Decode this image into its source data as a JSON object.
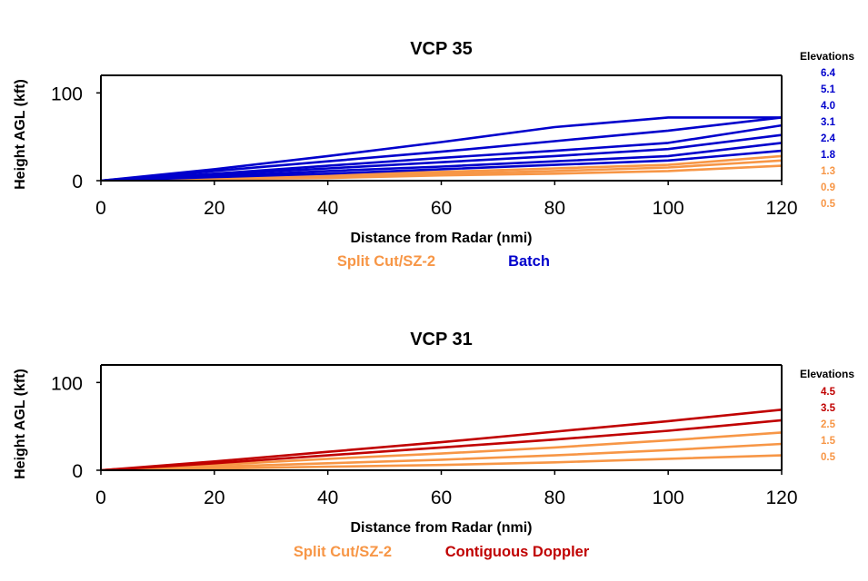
{
  "chart_data": [
    {
      "type": "line",
      "title": "VCP 35",
      "xlabel": "Distance from Radar (nmi)",
      "ylabel": "Height AGL (kft)",
      "xlim": [
        0,
        120
      ],
      "ylim": [
        0,
        120
      ],
      "xticks": [
        "0",
        "20",
        "40",
        "60",
        "80",
        "100",
        "120"
      ],
      "yticks": [
        "0",
        "100"
      ],
      "legend_title": "Elevations",
      "legend": [
        {
          "label": "6.4",
          "color": "#0000cc"
        },
        {
          "label": "5.1",
          "color": "#0000cc"
        },
        {
          "label": "4.0",
          "color": "#0000cc"
        },
        {
          "label": "3.1",
          "color": "#0000cc"
        },
        {
          "label": "2.4",
          "color": "#0000cc"
        },
        {
          "label": "1.8",
          "color": "#0000cc"
        },
        {
          "label": "1.3",
          "color": "#f79646"
        },
        {
          "label": "0.9",
          "color": "#f79646"
        },
        {
          "label": "0.5",
          "color": "#f79646"
        }
      ],
      "mode_legend": [
        {
          "label": "Split Cut/SZ-2",
          "color": "#f79646"
        },
        {
          "label": "Batch",
          "color": "#0000cc"
        }
      ],
      "x": [
        0,
        20,
        40,
        60,
        80,
        100,
        120
      ],
      "series": [
        {
          "name": "6.4",
          "color": "#0000cc",
          "values": [
            0,
            13,
            28,
            44,
            61,
            72,
            72
          ]
        },
        {
          "name": "5.1",
          "color": "#0000cc",
          "values": [
            0,
            11,
            22,
            33,
            45,
            57,
            72
          ]
        },
        {
          "name": "4.0",
          "color": "#0000cc",
          "values": [
            0,
            8,
            17,
            26,
            34,
            43,
            63
          ]
        },
        {
          "name": "3.1",
          "color": "#0000cc",
          "values": [
            0,
            7,
            14,
            21,
            28,
            36,
            52
          ]
        },
        {
          "name": "2.4",
          "color": "#0000cc",
          "values": [
            0,
            5,
            11,
            16,
            22,
            28,
            43
          ]
        },
        {
          "name": "1.8",
          "color": "#0000cc",
          "values": [
            0,
            4,
            8,
            13,
            18,
            23,
            34
          ]
        },
        {
          "name": "1.3",
          "color": "#f79646",
          "values": [
            0,
            3,
            7,
            10,
            14,
            18,
            28
          ]
        },
        {
          "name": "0.9",
          "color": "#f79646",
          "values": [
            0,
            2,
            5,
            8,
            11,
            15,
            23
          ]
        },
        {
          "name": "0.5",
          "color": "#f79646",
          "values": [
            0,
            2,
            3,
            6,
            8,
            11,
            17
          ]
        }
      ]
    },
    {
      "type": "line",
      "title": "VCP 31",
      "xlabel": "Distance from Radar (nmi)",
      "ylabel": "Height AGL (kft)",
      "xlim": [
        0,
        120
      ],
      "ylim": [
        0,
        120
      ],
      "xticks": [
        "0",
        "20",
        "40",
        "60",
        "80",
        "100",
        "120"
      ],
      "yticks": [
        "0",
        "100"
      ],
      "legend_title": "Elevations",
      "legend": [
        {
          "label": "4.5",
          "color": "#c00000"
        },
        {
          "label": "3.5",
          "color": "#c00000"
        },
        {
          "label": "2.5",
          "color": "#f79646"
        },
        {
          "label": "1.5",
          "color": "#f79646"
        },
        {
          "label": "0.5",
          "color": "#f79646"
        }
      ],
      "mode_legend": [
        {
          "label": "Split Cut/SZ-2",
          "color": "#f79646"
        },
        {
          "label": "Contiguous Doppler",
          "color": "#c00000"
        }
      ],
      "x": [
        0,
        20,
        40,
        60,
        80,
        100,
        120
      ],
      "series": [
        {
          "name": "4.5",
          "color": "#c00000",
          "values": [
            0,
            10,
            21,
            32,
            44,
            56,
            69
          ]
        },
        {
          "name": "3.5",
          "color": "#c00000",
          "values": [
            0,
            8,
            17,
            26,
            35,
            45,
            57
          ]
        },
        {
          "name": "2.5",
          "color": "#f79646",
          "values": [
            0,
            6,
            13,
            19,
            26,
            34,
            43
          ]
        },
        {
          "name": "1.5",
          "color": "#f79646",
          "values": [
            0,
            4,
            8,
            12,
            17,
            23,
            30
          ]
        },
        {
          "name": "0.5",
          "color": "#f79646",
          "values": [
            0,
            2,
            4,
            6,
            9,
            13,
            17
          ]
        }
      ]
    }
  ]
}
